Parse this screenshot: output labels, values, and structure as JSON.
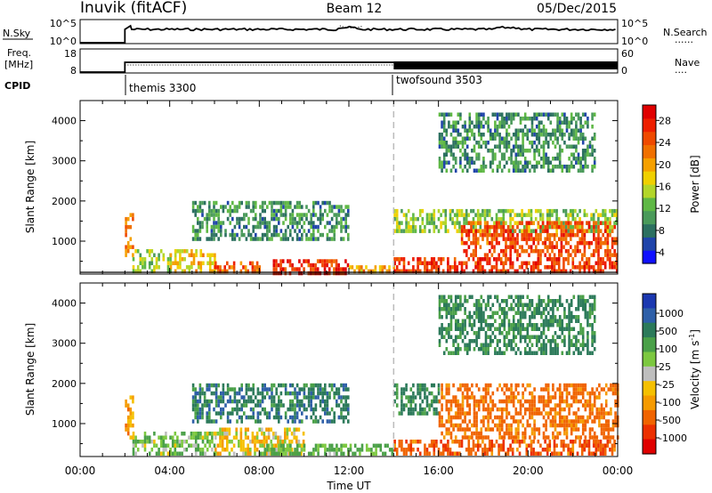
{
  "header": {
    "station": "Inuvik (fitACF)",
    "beam": "Beam 12",
    "date": "05/Dec/2015"
  },
  "strip_panels": {
    "nsky": {
      "label": "N.Sky",
      "left_ticks": [
        "10^5",
        "10^0"
      ],
      "right_ticks": [
        "10^5",
        "10^0"
      ],
      "right_label": "N.Search",
      "right_marker": "......"
    },
    "freq": {
      "label_line1": "Freq.",
      "label_line2": "[MHz]",
      "left_ticks": [
        "18",
        "8"
      ],
      "right_ticks": [
        "60",
        "0"
      ],
      "right_label": "Nave",
      "right_marker": "...."
    },
    "cpid": {
      "label": "CPID",
      "modes": [
        {
          "name": "themis 3300",
          "start": "02:00"
        },
        {
          "name": "twofsound 3503",
          "start": "14:00"
        }
      ]
    }
  },
  "chart_data": [
    {
      "type": "heatmap",
      "title": "",
      "quantity": "Power",
      "xlabel": "",
      "ylabel": "Slant Range [km]",
      "xlim": [
        "00:00",
        "24:00"
      ],
      "ylim": [
        180,
        4500
      ],
      "y_ticks": [
        1000,
        2000,
        3000,
        4000
      ],
      "colorbar": {
        "label": "Power [dB]",
        "ticks": [
          4,
          8,
          12,
          16,
          20,
          24,
          28
        ],
        "colors": [
          "#1010ff",
          "#1f44aa",
          "#2c7060",
          "#4a9a5a",
          "#5fb845",
          "#b3d62a",
          "#f0d000",
          "#f5a000",
          "#f07000",
          "#ef4a00",
          "#ee1f00",
          "#e00000"
        ]
      },
      "vertical_marker": "14:00",
      "echo_regions": [
        {
          "t": [
            "02:00",
            "02:20"
          ],
          "range": [
            700,
            1700
          ],
          "level": 22
        },
        {
          "t": [
            "02:20",
            "04:00"
          ],
          "range": [
            250,
            800
          ],
          "level": 14
        },
        {
          "t": [
            "04:00",
            "06:00"
          ],
          "range": [
            250,
            800
          ],
          "level": 18
        },
        {
          "t": [
            "06:00",
            "08:00"
          ],
          "range": [
            250,
            500
          ],
          "level": 24
        },
        {
          "t": [
            "08:30",
            "12:00"
          ],
          "range": [
            250,
            550
          ],
          "level": 27
        },
        {
          "t": [
            "05:00",
            "12:00"
          ],
          "range": [
            1100,
            2000
          ],
          "level": 10
        },
        {
          "t": [
            "12:00",
            "14:00"
          ],
          "range": [
            250,
            400
          ],
          "level": 20
        },
        {
          "t": [
            "14:00",
            "24:00"
          ],
          "range": [
            250,
            600
          ],
          "level": 26
        },
        {
          "t": [
            "14:00",
            "24:00"
          ],
          "range": [
            1300,
            1800
          ],
          "level": 14
        },
        {
          "t": [
            "17:00",
            "24:00"
          ],
          "range": [
            700,
            1500
          ],
          "level": 25
        },
        {
          "t": [
            "16:00",
            "23:00"
          ],
          "range": [
            2800,
            4200
          ],
          "level": 10
        }
      ]
    },
    {
      "type": "heatmap",
      "title": "",
      "quantity": "Velocity",
      "xlabel": "Time UT",
      "ylabel": "Slant Range [km]",
      "xlim": [
        "00:00",
        "24:00"
      ],
      "ylim": [
        180,
        4500
      ],
      "x_ticks": [
        "00:00",
        "04:00",
        "08:00",
        "12:00",
        "16:00",
        "20:00",
        "00:00"
      ],
      "y_ticks": [
        1000,
        2000,
        3000,
        4000
      ],
      "colorbar": {
        "label": "Velocity [m s^-1]",
        "ticks": [
          1000,
          500,
          100,
          25,
          -25,
          -100,
          -500,
          -1000
        ],
        "colors": [
          "#1b38b0",
          "#2e5fa8",
          "#2c7a5a",
          "#4aa048",
          "#7cc840",
          "#bebebe",
          "#f5c000",
          "#f59a00",
          "#f06400",
          "#ec3000",
          "#e00000"
        ]
      },
      "vertical_marker": "14:00",
      "echo_regions": [
        {
          "t": [
            "02:00",
            "02:20"
          ],
          "range": [
            700,
            1700
          ],
          "level": -50
        },
        {
          "t": [
            "02:20",
            "06:00"
          ],
          "range": [
            250,
            800
          ],
          "level": 80
        },
        {
          "t": [
            "06:00",
            "10:00"
          ],
          "range": [
            300,
            900
          ],
          "level": 0
        },
        {
          "t": [
            "05:00",
            "12:00"
          ],
          "range": [
            1100,
            2000
          ],
          "level": 400
        },
        {
          "t": [
            "08:00",
            "14:00"
          ],
          "range": [
            250,
            500
          ],
          "level": 120
        },
        {
          "t": [
            "14:00",
            "24:00"
          ],
          "range": [
            250,
            600
          ],
          "level": -200
        },
        {
          "t": [
            "14:00",
            "16:00"
          ],
          "range": [
            1300,
            2000
          ],
          "level": 300
        },
        {
          "t": [
            "16:00",
            "24:00"
          ],
          "range": [
            700,
            2000
          ],
          "level": -150
        },
        {
          "t": [
            "16:00",
            "23:00"
          ],
          "range": [
            2800,
            4200
          ],
          "level": 300
        }
      ]
    }
  ],
  "colors": {
    "frame": "#000000",
    "marker_line": "#bbbbbb",
    "series_line": "#000000"
  }
}
